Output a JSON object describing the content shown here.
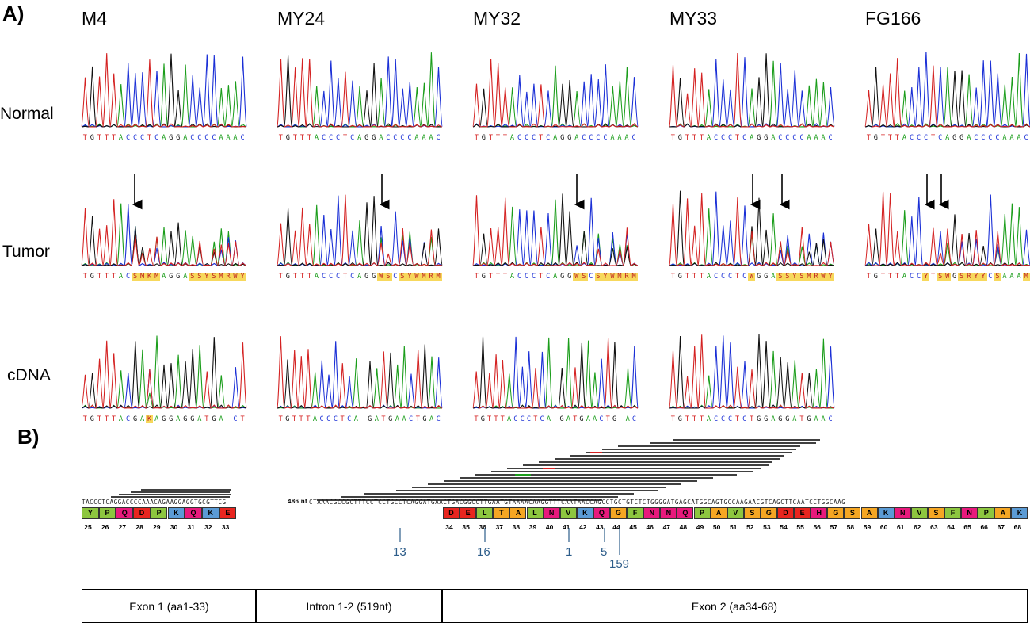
{
  "panel_a": {
    "label": "A)",
    "rows": [
      "Normal",
      "Tumor",
      "cDNA"
    ],
    "samples": [
      {
        "name": "M4",
        "normal_seq": "TGTTTACCCTCAGGACCCCAAAC",
        "tumor_seq": "TGTTTACSMKMAGGASSYSMRWY",
        "cdna_seq": "TGTTTACGAKAGGAGGATGA CT"
      },
      {
        "name": "MY24",
        "normal_seq": "TGTTTACCCTCAGGACCCCAAAC",
        "tumor_seq": "TGTTTACCCTCAGGWSCSYWMRM",
        "cdna_seq": "TGTTTACCCTCA GATGAACTGAC"
      },
      {
        "name": "MY32",
        "normal_seq": "TGTTTACCCTCAGGACCCCAAAC",
        "tumor_seq": "TGTTTACCCTCAGGWSCSYWMRM",
        "cdna_seq": "TGTTTACCCTCA GATGAACTG AC"
      },
      {
        "name": "MY33",
        "normal_seq": "TGTTTACCCTCAGGACCCCAAAC",
        "tumor_seq": "TGTTTACCCTCWGGASSYSMRWY",
        "cdna_seq": "TGTTTACCCTCTGGAGGATGAAC"
      },
      {
        "name": "FG166",
        "normal_seq": "TGTTTACCCTCAGGACCCCAAAC",
        "tumor_seq": "TGTTTACCYTSWGSRYYCSAAAM",
        "cdna_seq": ""
      }
    ]
  },
  "panel_b": {
    "label": "B)",
    "genomic_seq_left": "TACCCTCAGGACCCCAAACAGAAGGAGGTGCGTTCG",
    "gap_label": "486 nt",
    "genomic_seq_right": "CTAAACGCCGCTTTCCTCCTGCCTCAGGATGAACTGACGGCCTTGAATGTAAAACAAGGTTTCAATAACCAGCCTGCTGTCTCTGGGGATGAGCATGGCAGTGCCAAGAACGTCAGCTTCAATCCTGGCAAG",
    "exon1_aa": [
      {
        "aa": "Y",
        "num": "25",
        "color": "#8dc63f"
      },
      {
        "aa": "P",
        "num": "26",
        "color": "#8dc63f"
      },
      {
        "aa": "Q",
        "num": "27",
        "color": "#e8197c"
      },
      {
        "aa": "D",
        "num": "28",
        "color": "#e8251f"
      },
      {
        "aa": "P",
        "num": "29",
        "color": "#8dc63f"
      },
      {
        "aa": "K",
        "num": "30",
        "color": "#5b9bd5"
      },
      {
        "aa": "Q",
        "num": "31",
        "color": "#e8197c"
      },
      {
        "aa": "K",
        "num": "32",
        "color": "#5b9bd5"
      },
      {
        "aa": "E",
        "num": "33",
        "color": "#e8251f"
      }
    ],
    "exon2_aa": [
      {
        "aa": "D",
        "num": "34",
        "color": "#e8251f"
      },
      {
        "aa": "E",
        "num": "35",
        "color": "#e8251f"
      },
      {
        "aa": "L",
        "num": "36",
        "color": "#8dc63f"
      },
      {
        "aa": "T",
        "num": "37",
        "color": "#f5a623"
      },
      {
        "aa": "A",
        "num": "38",
        "color": "#f5a623"
      },
      {
        "aa": "L",
        "num": "39",
        "color": "#8dc63f"
      },
      {
        "aa": "N",
        "num": "40",
        "color": "#e8197c"
      },
      {
        "aa": "V",
        "num": "41",
        "color": "#8dc63f"
      },
      {
        "aa": "K",
        "num": "42",
        "color": "#5b9bd5"
      },
      {
        "aa": "Q",
        "num": "43",
        "color": "#e8197c"
      },
      {
        "aa": "G",
        "num": "44",
        "color": "#f5a623"
      },
      {
        "aa": "F",
        "num": "45",
        "color": "#8dc63f"
      },
      {
        "aa": "N",
        "num": "46",
        "color": "#e8197c"
      },
      {
        "aa": "N",
        "num": "47",
        "color": "#e8197c"
      },
      {
        "aa": "Q",
        "num": "48",
        "color": "#e8197c"
      },
      {
        "aa": "P",
        "num": "49",
        "color": "#8dc63f"
      },
      {
        "aa": "A",
        "num": "50",
        "color": "#f5a623"
      },
      {
        "aa": "V",
        "num": "51",
        "color": "#8dc63f"
      },
      {
        "aa": "S",
        "num": "52",
        "color": "#f5a623"
      },
      {
        "aa": "G",
        "num": "53",
        "color": "#f5a623"
      },
      {
        "aa": "D",
        "num": "54",
        "color": "#e8251f"
      },
      {
        "aa": "E",
        "num": "55",
        "color": "#e8251f"
      },
      {
        "aa": "H",
        "num": "56",
        "color": "#e8197c"
      },
      {
        "aa": "G",
        "num": "57",
        "color": "#f5a623"
      },
      {
        "aa": "S",
        "num": "58",
        "color": "#f5a623"
      },
      {
        "aa": "A",
        "num": "59",
        "color": "#f5a623"
      },
      {
        "aa": "K",
        "num": "60",
        "color": "#5b9bd5"
      },
      {
        "aa": "N",
        "num": "61",
        "color": "#e8197c"
      },
      {
        "aa": "V",
        "num": "62",
        "color": "#8dc63f"
      },
      {
        "aa": "S",
        "num": "63",
        "color": "#f5a623"
      },
      {
        "aa": "F",
        "num": "64",
        "color": "#8dc63f"
      },
      {
        "aa": "N",
        "num": "65",
        "color": "#e8197c"
      },
      {
        "aa": "P",
        "num": "66",
        "color": "#8dc63f"
      },
      {
        "aa": "A",
        "num": "67",
        "color": "#f5a623"
      },
      {
        "aa": "K",
        "num": "68",
        "color": "#5b9bd5"
      }
    ],
    "breakpoint_counts": [
      "13",
      "16",
      "1",
      "5",
      "159"
    ],
    "gene_structure": [
      "Exon 1 (aa1-33)",
      "Intron 1-2 (519nt)",
      "Exon 2 (aa34-68)"
    ]
  }
}
